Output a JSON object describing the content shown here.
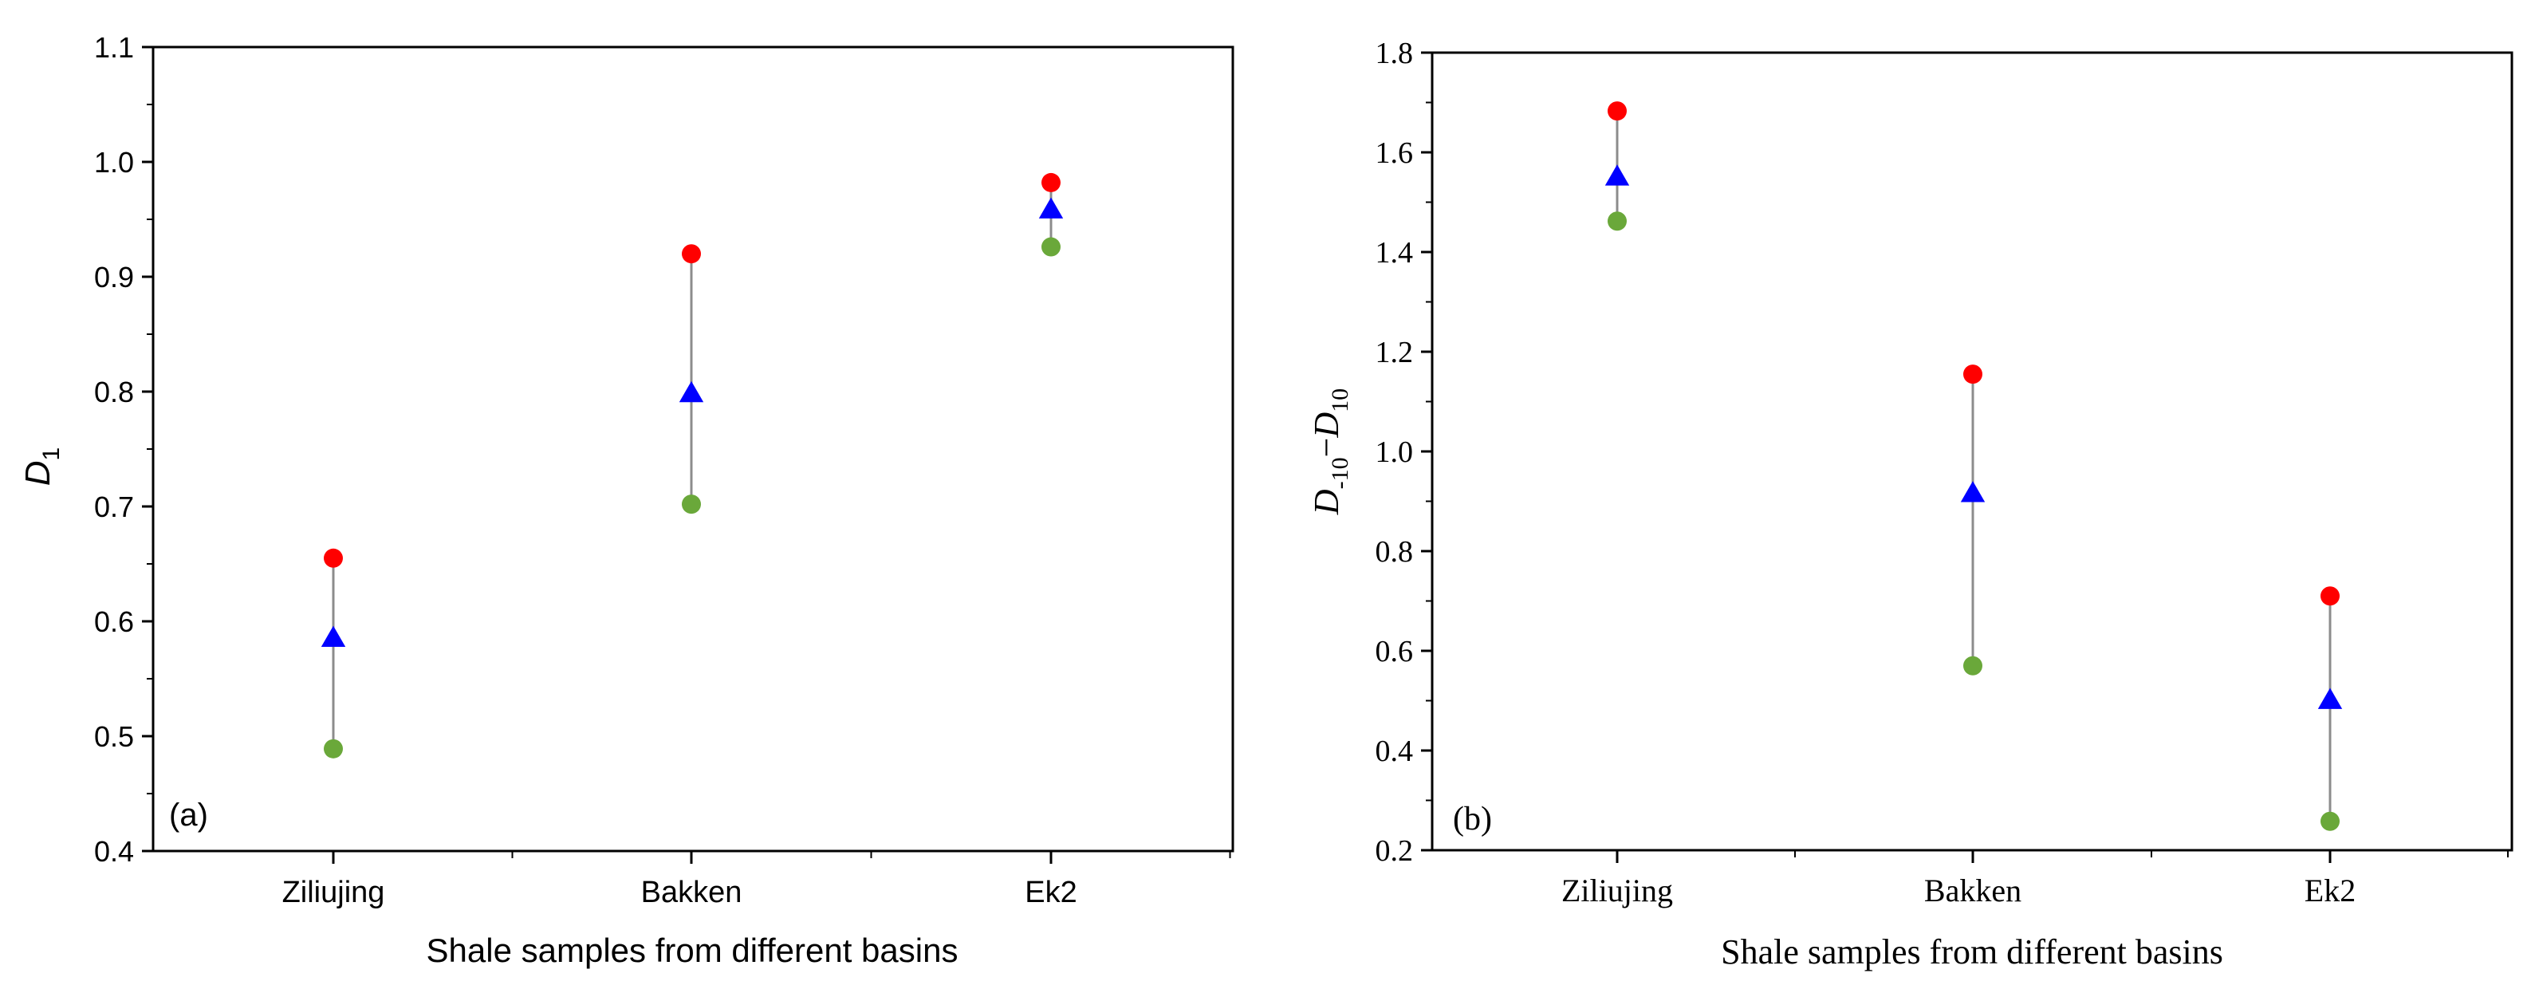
{
  "chart_data": [
    {
      "id": "a",
      "type": "scatter",
      "panel_label": "(a)",
      "categories": [
        "Ziliujing",
        "Bakken",
        "Ek2"
      ],
      "xlabel": "Shale samples from different basins",
      "ylabel_main": "D",
      "ylabel_sub": "1",
      "ylim": [
        0.4,
        1.1
      ],
      "yticks": [
        0.4,
        0.5,
        0.6,
        0.7,
        0.8,
        0.9,
        1.0,
        1.1
      ],
      "ytick_labels": [
        "0.4",
        "0.5",
        "0.6",
        "0.7",
        "0.8",
        "0.9",
        "1.0",
        "1.1"
      ],
      "grid": false,
      "series": [
        {
          "marker": "circle",
          "color": "#ff0000",
          "values": [
            0.655,
            0.92,
            0.982
          ]
        },
        {
          "marker": "triangle",
          "color": "#0000ff",
          "values": [
            0.585,
            0.798,
            0.958
          ]
        },
        {
          "marker": "circle",
          "color": "#6aa83a",
          "values": [
            0.489,
            0.702,
            0.926
          ]
        }
      ]
    },
    {
      "id": "b",
      "type": "scatter",
      "panel_label": "(b)",
      "categories": [
        "Ziliujing",
        "Bakken",
        "Ek2"
      ],
      "xlabel": "Shale samples from different basins",
      "ylabel_main1": "D",
      "ylabel_sub1": "-10",
      "ylabel_dash": "−",
      "ylabel_main2": "D",
      "ylabel_sub2": "10",
      "ylim": [
        0.2,
        1.8
      ],
      "yticks": [
        0.2,
        0.4,
        0.6,
        0.8,
        1.0,
        1.2,
        1.4,
        1.6,
        1.8
      ],
      "ytick_labels": [
        "0.2",
        "0.4",
        "0.6",
        "0.8",
        "1.0",
        "1.2",
        "1.4",
        "1.6",
        "1.8"
      ],
      "grid": false,
      "series": [
        {
          "marker": "circle",
          "color": "#ff0000",
          "values": [
            1.683,
            1.155,
            0.71
          ]
        },
        {
          "marker": "triangle",
          "color": "#0000ff",
          "values": [
            1.55,
            0.915,
            0.5
          ]
        },
        {
          "marker": "circle",
          "color": "#6aa83a",
          "values": [
            1.462,
            0.57,
            0.258
          ]
        }
      ]
    }
  ]
}
